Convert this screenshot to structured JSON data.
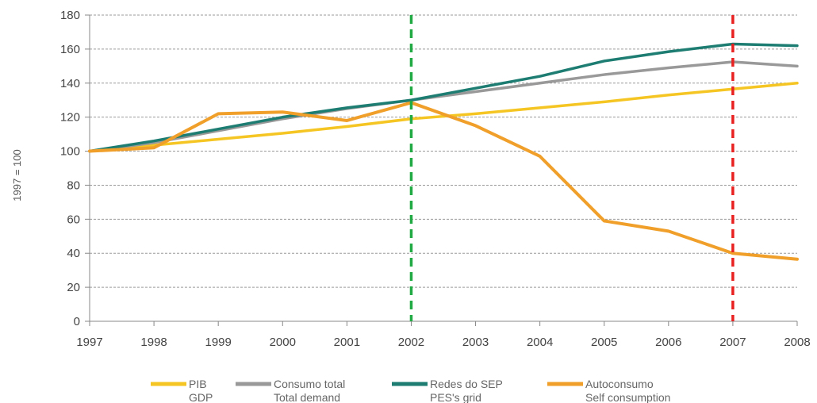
{
  "chart_data": {
    "type": "line",
    "title": "",
    "xlabel": "",
    "ylabel": "1997 = 100",
    "x": [
      "1997",
      "1998",
      "1999",
      "2000",
      "2001",
      "2002",
      "2003",
      "2004",
      "2005",
      "2006",
      "2007",
      "2008"
    ],
    "ylim": [
      0,
      180
    ],
    "yticks": [
      0,
      20,
      40,
      60,
      80,
      100,
      120,
      140,
      160,
      180
    ],
    "grid": "horizontal-dashed",
    "legend_position": "bottom",
    "series": [
      {
        "name": "PIB",
        "name2": "GDP",
        "color": "#f5c623",
        "values": [
          100,
          103.5,
          107,
          110.5,
          114.5,
          119,
          122,
          125.5,
          129,
          133,
          136.5,
          140
        ]
      },
      {
        "name": "Consumo total",
        "name2": "Total demand",
        "color": "#999999",
        "values": [
          100,
          105,
          112,
          119,
          125,
          130,
          135,
          140,
          145,
          149,
          152.5,
          150
        ]
      },
      {
        "name": "Redes do SEP",
        "name2": "PES's grid",
        "color": "#1e7d72",
        "values": [
          100,
          106,
          113,
          120,
          125.5,
          130,
          137,
          144,
          153,
          158.5,
          163,
          162
        ]
      },
      {
        "name": "Autoconsumo",
        "name2": "Self consumption",
        "color": "#f0a02a",
        "values": [
          100,
          102,
          122,
          123,
          118,
          128.5,
          115,
          97,
          59,
          53,
          40,
          36.5
        ]
      }
    ],
    "vlines": [
      {
        "x": "2002",
        "color": "#22aa44"
      },
      {
        "x": "2007",
        "color": "#e82020"
      }
    ]
  }
}
